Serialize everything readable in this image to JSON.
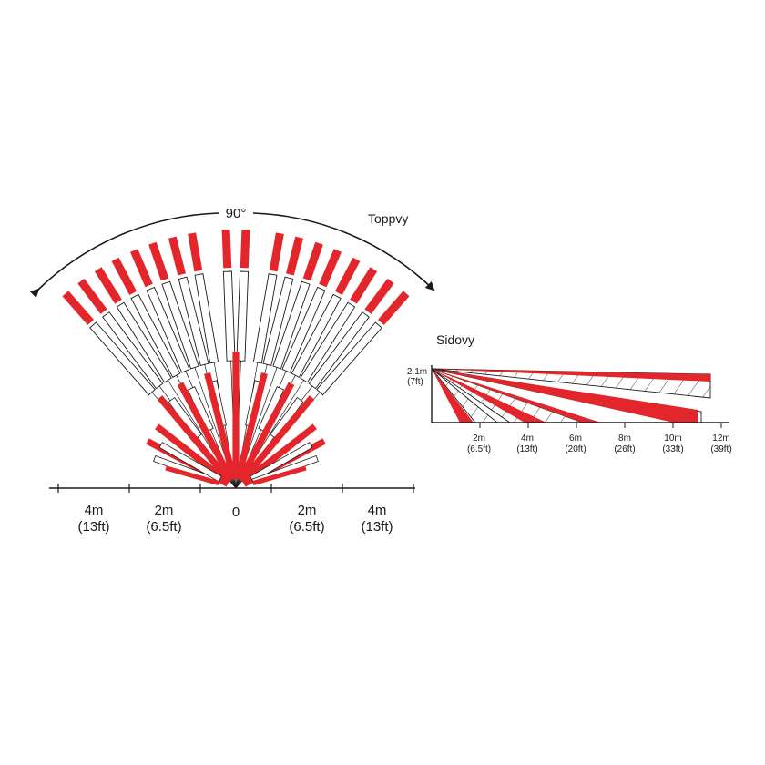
{
  "colors": {
    "red": "#e3262b",
    "line": "#1a1a1a",
    "white": "#ffffff"
  },
  "top_view": {
    "title": "Toppvy",
    "angle_label": "90°",
    "origin_label": "0",
    "scale_labels": [
      {
        "dist": "4m",
        "ft": "(13ft)"
      },
      {
        "dist": "2m",
        "ft": "(6.5ft)"
      },
      {
        "dist": "2m",
        "ft": "(6.5ft)"
      },
      {
        "dist": "4m",
        "ft": "(13ft)"
      }
    ]
  },
  "side_view": {
    "title": "Sidovy",
    "height_label": "2.1m",
    "height_ft": "(7ft)",
    "scale_labels": [
      {
        "dist": "2m",
        "ft": "(6.5ft)"
      },
      {
        "dist": "4m",
        "ft": "(13ft)"
      },
      {
        "dist": "6m",
        "ft": "(20ft)"
      },
      {
        "dist": "8m",
        "ft": "(26ft)"
      },
      {
        "dist": "10m",
        "ft": "(33ft)"
      },
      {
        "dist": "12m",
        "ft": "(39ft)"
      }
    ]
  }
}
